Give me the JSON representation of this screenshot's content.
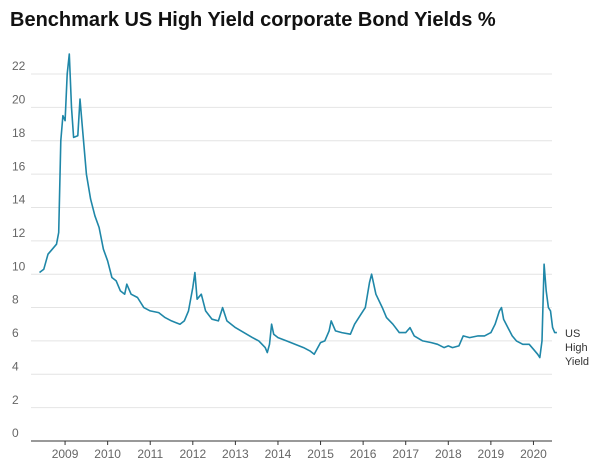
{
  "chart_data": {
    "type": "line",
    "title": "Benchmark US High Yield corporate Bond Yields %",
    "x": [
      2008.4,
      2008.5,
      2008.6,
      2008.7,
      2008.8,
      2008.85,
      2008.9,
      2008.95,
      2009.0,
      2009.05,
      2009.1,
      2009.15,
      2009.2,
      2009.3,
      2009.35,
      2009.4,
      2009.5,
      2009.6,
      2009.7,
      2009.8,
      2009.9,
      2010.0,
      2010.1,
      2010.2,
      2010.3,
      2010.4,
      2010.45,
      2010.55,
      2010.7,
      2010.85,
      2011.0,
      2011.2,
      2011.35,
      2011.5,
      2011.6,
      2011.7,
      2011.8,
      2011.9,
      2012.0,
      2012.05,
      2012.1,
      2012.2,
      2012.3,
      2012.45,
      2012.6,
      2012.7,
      2012.8,
      2013.0,
      2013.2,
      2013.4,
      2013.55,
      2013.7,
      2013.75,
      2013.8,
      2013.85,
      2013.9,
      2014.0,
      2014.2,
      2014.4,
      2014.6,
      2014.75,
      2014.85,
      2015.0,
      2015.1,
      2015.2,
      2015.25,
      2015.35,
      2015.5,
      2015.7,
      2015.8,
      2015.95,
      2016.05,
      2016.15,
      2016.2,
      2016.3,
      2016.45,
      2016.55,
      2016.7,
      2016.85,
      2017.0,
      2017.1,
      2017.2,
      2017.4,
      2017.6,
      2017.75,
      2017.9,
      2018.0,
      2018.1,
      2018.25,
      2018.35,
      2018.5,
      2018.7,
      2018.85,
      2019.0,
      2019.1,
      2019.2,
      2019.25,
      2019.3,
      2019.4,
      2019.5,
      2019.6,
      2019.75,
      2019.9,
      2020.0,
      2020.1,
      2020.15,
      2020.2,
      2020.25,
      2020.3,
      2020.35,
      2020.4,
      2020.45,
      2020.5,
      2020.55
    ],
    "series": [
      {
        "name": "US High Yield",
        "color": "#1f87a8",
        "values": [
          10.1,
          10.3,
          11.2,
          11.5,
          11.8,
          12.5,
          18.0,
          19.5,
          19.2,
          22.0,
          23.2,
          20.0,
          18.2,
          18.3,
          20.5,
          19.0,
          16.0,
          14.5,
          13.5,
          12.8,
          11.5,
          10.8,
          9.8,
          9.6,
          9.0,
          8.8,
          9.4,
          8.8,
          8.6,
          8.0,
          7.8,
          7.7,
          7.4,
          7.2,
          7.1,
          7.0,
          7.2,
          7.8,
          9.2,
          10.1,
          8.5,
          8.8,
          7.8,
          7.3,
          7.2,
          8.0,
          7.2,
          6.8,
          6.5,
          6.2,
          6.0,
          5.6,
          5.3,
          5.8,
          7.0,
          6.4,
          6.2,
          6.0,
          5.8,
          5.6,
          5.4,
          5.2,
          5.9,
          6.0,
          6.6,
          7.2,
          6.6,
          6.5,
          6.4,
          7.0,
          7.6,
          8.0,
          9.5,
          10.0,
          8.8,
          8.0,
          7.4,
          7.0,
          6.5,
          6.5,
          6.8,
          6.3,
          6.0,
          5.9,
          5.8,
          5.6,
          5.7,
          5.6,
          5.7,
          6.3,
          6.2,
          6.3,
          6.3,
          6.5,
          7.0,
          7.8,
          8.0,
          7.3,
          6.8,
          6.3,
          6.0,
          5.8,
          5.8,
          5.5,
          5.2,
          5.0,
          6.0,
          10.6,
          9.0,
          8.0,
          7.8,
          6.8,
          6.5,
          6.5
        ]
      }
    ],
    "xlim": [
      2008.2,
      2020.6
    ],
    "xticks": [
      2009,
      2010,
      2011,
      2012,
      2013,
      2014,
      2015,
      2016,
      2017,
      2018,
      2019,
      2020
    ],
    "ylim": [
      0,
      23.5
    ],
    "yticks": [
      0,
      2,
      4,
      6,
      8,
      10,
      12,
      14,
      16,
      18,
      20,
      22
    ],
    "grid": true
  }
}
